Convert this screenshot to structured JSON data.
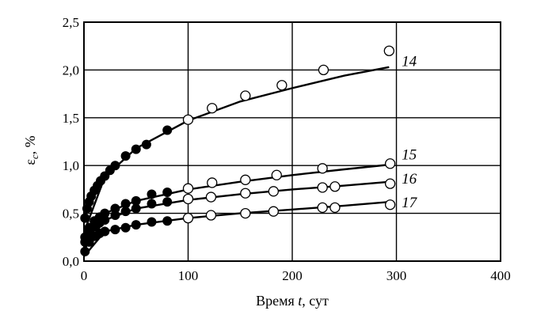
{
  "chart_data": {
    "type": "scatter",
    "title": "",
    "xlabel": "Время t, сут",
    "xlabel_parts": {
      "pre": "Время ",
      "var": "t",
      "post": ", сут"
    },
    "ylabel": "εc, %",
    "ylabel_parts": {
      "sym": "ε",
      "sub": "c",
      "post": ", %"
    },
    "xlim": [
      0,
      400
    ],
    "ylim": [
      0,
      2.5
    ],
    "x_ticks": [
      "0",
      "100",
      "200",
      "300",
      "400"
    ],
    "y_ticks": [
      "0,0",
      "0,5",
      "1,0",
      "1,5",
      "2,0",
      "2,5"
    ],
    "grid": true,
    "legend": "curve labels at right end",
    "series": [
      {
        "name": "14",
        "filled_points": [
          [
            1,
            0.45
          ],
          [
            3,
            0.55
          ],
          [
            5,
            0.62
          ],
          [
            7,
            0.68
          ],
          [
            10,
            0.74
          ],
          [
            13,
            0.79
          ],
          [
            16,
            0.84
          ],
          [
            20,
            0.89
          ],
          [
            25,
            0.95
          ],
          [
            30,
            1.0
          ],
          [
            40,
            1.1
          ],
          [
            50,
            1.17
          ],
          [
            60,
            1.22
          ],
          [
            80,
            1.37
          ]
        ],
        "open_points": [
          [
            100,
            1.48
          ],
          [
            123,
            1.6
          ],
          [
            155,
            1.73
          ],
          [
            190,
            1.84
          ],
          [
            230,
            2.0
          ],
          [
            293,
            2.2
          ]
        ],
        "fit_curve": [
          [
            0,
            0.3
          ],
          [
            20,
            0.88
          ],
          [
            50,
            1.18
          ],
          [
            100,
            1.47
          ],
          [
            150,
            1.67
          ],
          [
            200,
            1.81
          ],
          [
            250,
            1.94
          ],
          [
            293,
            2.03
          ]
        ]
      },
      {
        "name": "15",
        "filled_points": [
          [
            1,
            0.25
          ],
          [
            5,
            0.35
          ],
          [
            10,
            0.42
          ],
          [
            15,
            0.46
          ],
          [
            20,
            0.5
          ],
          [
            30,
            0.55
          ],
          [
            40,
            0.6
          ],
          [
            50,
            0.63
          ],
          [
            65,
            0.7
          ],
          [
            80,
            0.72
          ]
        ],
        "open_points": [
          [
            100,
            0.76
          ],
          [
            123,
            0.82
          ],
          [
            155,
            0.85
          ],
          [
            185,
            0.9
          ],
          [
            229,
            0.97
          ],
          [
            294,
            1.02
          ]
        ],
        "fit_curve": [
          [
            0,
            0.15
          ],
          [
            20,
            0.5
          ],
          [
            50,
            0.63
          ],
          [
            100,
            0.75
          ],
          [
            150,
            0.83
          ],
          [
            200,
            0.9
          ],
          [
            250,
            0.96
          ],
          [
            294,
            1.01
          ]
        ]
      },
      {
        "name": "16",
        "filled_points": [
          [
            1,
            0.2
          ],
          [
            5,
            0.3
          ],
          [
            10,
            0.36
          ],
          [
            15,
            0.4
          ],
          [
            20,
            0.43
          ],
          [
            30,
            0.48
          ],
          [
            40,
            0.52
          ],
          [
            50,
            0.55
          ],
          [
            65,
            0.6
          ],
          [
            80,
            0.62
          ]
        ],
        "open_points": [
          [
            100,
            0.65
          ],
          [
            122,
            0.67
          ],
          [
            155,
            0.71
          ],
          [
            182,
            0.73
          ],
          [
            229,
            0.77
          ],
          [
            241,
            0.78
          ],
          [
            294,
            0.81
          ]
        ],
        "fit_curve": [
          [
            0,
            0.12
          ],
          [
            20,
            0.43
          ],
          [
            50,
            0.55
          ],
          [
            100,
            0.64
          ],
          [
            150,
            0.7
          ],
          [
            200,
            0.75
          ],
          [
            250,
            0.79
          ],
          [
            294,
            0.83
          ]
        ]
      },
      {
        "name": "17",
        "filled_points": [
          [
            1,
            0.1
          ],
          [
            5,
            0.2
          ],
          [
            10,
            0.26
          ],
          [
            15,
            0.29
          ],
          [
            20,
            0.31
          ],
          [
            30,
            0.33
          ],
          [
            40,
            0.35
          ],
          [
            50,
            0.38
          ],
          [
            65,
            0.41
          ],
          [
            80,
            0.42
          ]
        ],
        "open_points": [
          [
            100,
            0.45
          ],
          [
            122,
            0.48
          ],
          [
            155,
            0.5
          ],
          [
            182,
            0.52
          ],
          [
            229,
            0.56
          ],
          [
            241,
            0.56
          ],
          [
            294,
            0.59
          ]
        ],
        "fit_curve": [
          [
            0,
            0.05
          ],
          [
            20,
            0.31
          ],
          [
            50,
            0.38
          ],
          [
            100,
            0.45
          ],
          [
            150,
            0.5
          ],
          [
            200,
            0.54
          ],
          [
            250,
            0.58
          ],
          [
            294,
            0.62
          ]
        ]
      }
    ],
    "curve_labels": [
      {
        "text": "14",
        "y": 2.1
      },
      {
        "text": "15",
        "y": 1.12
      },
      {
        "text": "16",
        "y": 0.87
      },
      {
        "text": "17",
        "y": 0.62
      }
    ]
  }
}
